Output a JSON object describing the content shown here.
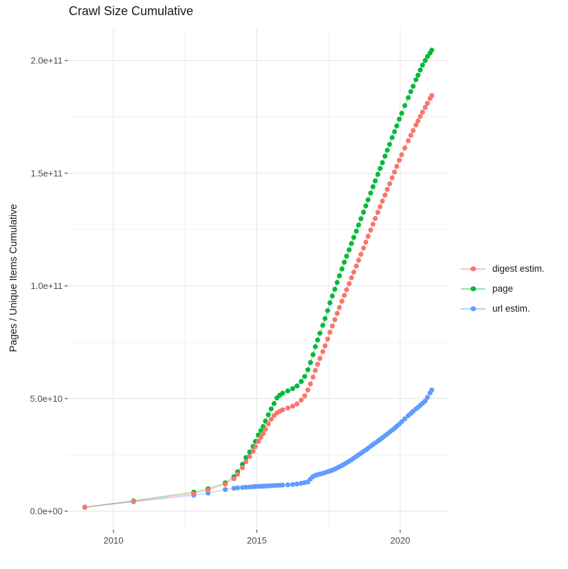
{
  "title": "Crawl Size Cumulative",
  "y_axis_title": "Pages / Unique Items Cumulative",
  "colors": {
    "digest": "#F8766D",
    "page": "#00BA38",
    "url": "#619CFF",
    "grid_major": "#E8E8E8",
    "grid_minor": "#F1F1F1",
    "axis_tick": "#333333",
    "tick_text": "#4D4D4D",
    "title_text": "#1A1A1A",
    "background": "#FFFFFF"
  },
  "legend": {
    "items": [
      {
        "label": "digest estim.",
        "series_key": "digest"
      },
      {
        "label": "page",
        "series_key": "page"
      },
      {
        "label": "url estim.",
        "series_key": "url"
      }
    ]
  },
  "chart_data": {
    "type": "line",
    "title": "Crawl Size Cumulative",
    "xlabel": "",
    "ylabel": "Pages / Unique Items Cumulative",
    "legend_position": "right",
    "grid": true,
    "x_unit": "decimal year",
    "y_unit": "count (values below in billions, 1 = 1e9)",
    "xlim": [
      2008.4,
      2021.75
    ],
    "ylim_billions": [
      -8,
      215
    ],
    "x_major_ticks": [
      2010,
      2015,
      2020
    ],
    "x_tick_labels": [
      "2010",
      "2015",
      "2020"
    ],
    "x_minor_gridlines": [
      2012.5,
      2017.5
    ],
    "y_major_ticks_billions": [
      0,
      50,
      100,
      150,
      200
    ],
    "y_tick_labels": [
      "0.0e+00",
      "5.0e+10",
      "1.0e+11",
      "1.5e+11",
      "2.0e+11"
    ],
    "y_minor_gridlines_billions": [
      25,
      75,
      125,
      175
    ],
    "x": [
      2009.0,
      2010.7,
      2012.8,
      2013.3,
      2013.9,
      2014.2,
      2014.33,
      2014.5,
      2014.62,
      2014.75,
      2014.87,
      2014.95,
      2015.05,
      2015.14,
      2015.22,
      2015.3,
      2015.4,
      2015.5,
      2015.6,
      2015.7,
      2015.8,
      2015.9,
      2016.08,
      2016.25,
      2016.4,
      2016.55,
      2016.67,
      2016.78,
      2016.87,
      2016.96,
      2017.04,
      2017.12,
      2017.2,
      2017.3,
      2017.38,
      2017.47,
      2017.55,
      2017.63,
      2017.72,
      2017.8,
      2017.88,
      2017.97,
      2018.05,
      2018.13,
      2018.22,
      2018.3,
      2018.38,
      2018.47,
      2018.55,
      2018.63,
      2018.72,
      2018.8,
      2018.88,
      2018.97,
      2019.05,
      2019.13,
      2019.22,
      2019.3,
      2019.38,
      2019.47,
      2019.55,
      2019.63,
      2019.72,
      2019.8,
      2019.88,
      2019.97,
      2020.05,
      2020.16,
      2020.28,
      2020.37,
      2020.45,
      2020.55,
      2020.62,
      2020.7,
      2020.78,
      2020.87,
      2020.95,
      2021.04,
      2021.1
    ],
    "series": [
      {
        "name": "digest estim.",
        "color": "#F8766D",
        "y_billions": [
          1.8,
          4.4,
          7.8,
          9.4,
          12.0,
          14.4,
          16.4,
          19.3,
          22.0,
          24.3,
          26.6,
          28.6,
          31.0,
          32.8,
          34.4,
          36.4,
          38.8,
          40.8,
          42.4,
          43.6,
          44.4,
          45.0,
          45.8,
          46.6,
          47.6,
          49.3,
          51.2,
          53.8,
          56.5,
          59.5,
          62.5,
          65.2,
          67.8,
          70.8,
          73.4,
          76.4,
          79.4,
          82.2,
          85.0,
          87.8,
          90.4,
          93.2,
          95.8,
          98.3,
          101.0,
          103.6,
          106.1,
          108.8,
          111.4,
          114.0,
          116.8,
          119.4,
          122.0,
          124.8,
          127.4,
          129.9,
          132.6,
          135.1,
          137.6,
          140.3,
          142.8,
          145.3,
          148.0,
          150.5,
          153.0,
          155.8,
          158.2,
          161.2,
          164.4,
          166.8,
          168.9,
          171.4,
          173.2,
          175.2,
          177.1,
          179.2,
          181.0,
          183.2,
          184.5
        ]
      },
      {
        "name": "page",
        "color": "#00BA38",
        "y_billions": [
          1.8,
          4.6,
          8.5,
          10.0,
          12.6,
          15.3,
          17.5,
          20.8,
          23.8,
          26.3,
          28.8,
          31.0,
          33.8,
          35.8,
          37.6,
          40.0,
          42.8,
          45.4,
          47.8,
          50.3,
          51.5,
          52.4,
          53.4,
          54.4,
          55.6,
          57.6,
          59.8,
          62.8,
          66.0,
          69.5,
          73.0,
          76.0,
          79.0,
          82.5,
          85.5,
          89.0,
          92.5,
          95.5,
          98.5,
          101.5,
          104.5,
          107.5,
          110.5,
          113.2,
          116.0,
          118.8,
          121.5,
          124.3,
          127.0,
          129.8,
          132.7,
          135.5,
          138.2,
          141.2,
          144.0,
          146.6,
          149.5,
          152.1,
          154.7,
          157.6,
          160.2,
          162.8,
          165.8,
          168.4,
          171.0,
          174.0,
          176.6,
          180.0,
          183.5,
          186.2,
          188.6,
          191.5,
          193.5,
          195.8,
          198.0,
          200.0,
          201.8,
          203.3,
          204.6
        ]
      },
      {
        "name": "url estim.",
        "color": "#619CFF",
        "y_billions": [
          1.7,
          4.2,
          7.1,
          8.0,
          9.6,
          10.2,
          10.35,
          10.5,
          10.65,
          10.75,
          10.85,
          10.95,
          11.0,
          11.05,
          11.1,
          11.15,
          11.25,
          11.3,
          11.4,
          11.45,
          11.5,
          11.6,
          11.7,
          11.85,
          12.1,
          12.4,
          12.7,
          13.0,
          14.3,
          15.4,
          15.9,
          16.2,
          16.5,
          16.8,
          17.1,
          17.5,
          17.8,
          18.2,
          18.7,
          19.2,
          19.7,
          20.3,
          20.9,
          21.5,
          22.2,
          22.8,
          23.5,
          24.3,
          25.0,
          25.7,
          26.5,
          27.2,
          27.9,
          28.8,
          29.6,
          30.3,
          31.1,
          31.8,
          32.6,
          33.5,
          34.3,
          35.1,
          36.0,
          36.8,
          37.7,
          38.7,
          39.7,
          41.0,
          42.4,
          43.4,
          44.3,
          45.4,
          46.1,
          47.0,
          47.9,
          48.9,
          50.5,
          52.5,
          53.8
        ]
      }
    ]
  }
}
